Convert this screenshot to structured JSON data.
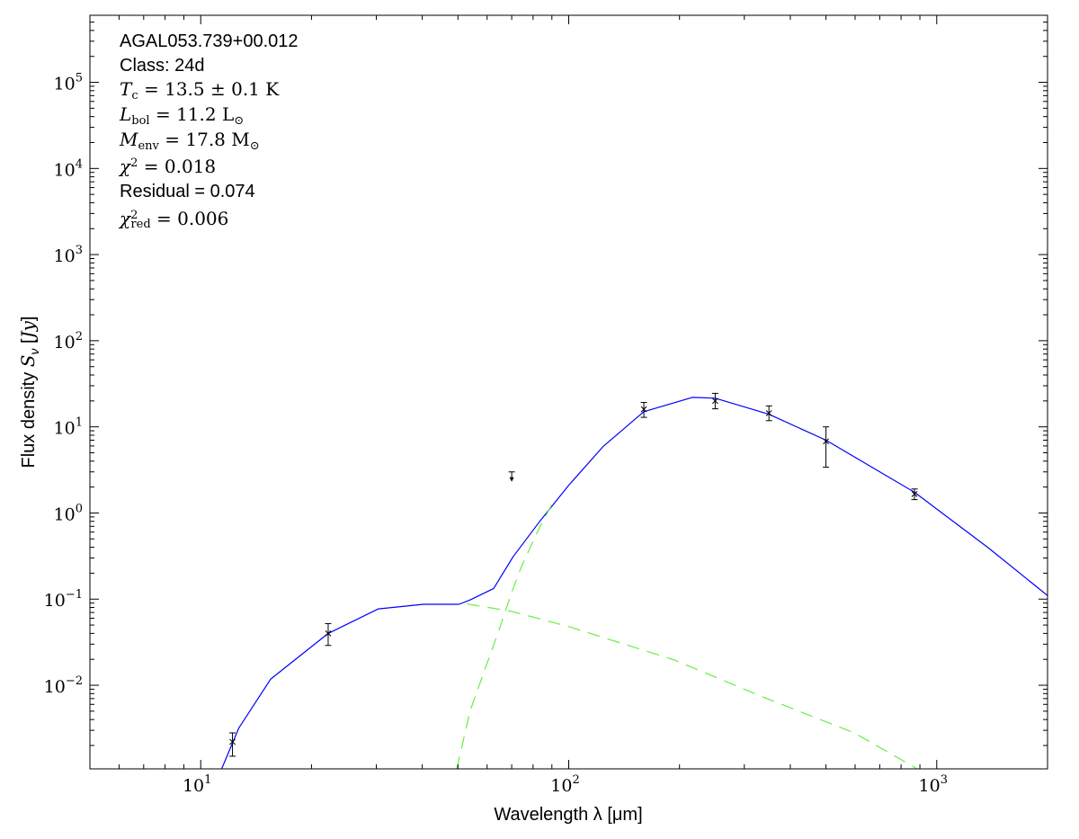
{
  "chart_data": {
    "type": "scatter",
    "title": "",
    "xlabel": "Wavelength λ [μm]",
    "ylabel": "Flux density S_ν [Jy]",
    "xscale": "log",
    "yscale": "log",
    "xlim": [
      5,
      2000
    ],
    "ylim": [
      0.00107,
      600000
    ],
    "grid": false,
    "x_ticks": [
      {
        "value": 10,
        "base": "10",
        "exp": "1"
      },
      {
        "value": 100,
        "base": "10",
        "exp": "2"
      },
      {
        "value": 1000,
        "base": "10",
        "exp": "3"
      }
    ],
    "y_ticks": [
      {
        "value": 0.01,
        "base": "10",
        "exp": "−2"
      },
      {
        "value": 0.1,
        "base": "10",
        "exp": "−1"
      },
      {
        "value": 1,
        "base": "10",
        "exp": "0"
      },
      {
        "value": 10,
        "base": "10",
        "exp": "1"
      },
      {
        "value": 100,
        "base": "10",
        "exp": "2"
      },
      {
        "value": 1000,
        "base": "10",
        "exp": "3"
      },
      {
        "value": 10000,
        "base": "10",
        "exp": "4"
      },
      {
        "value": 100000,
        "base": "10",
        "exp": "5"
      }
    ],
    "annotations": {
      "source": "AGAL053.739+00.012",
      "class": "Class: 24d",
      "tc": {
        "sym": "T",
        "sub": "c",
        "rest": " = 13.5 ± 0.1 K"
      },
      "lbol": {
        "sym": "L",
        "sub": "bol",
        "rest": " = 11.2 L",
        "unit_sub": "⊙"
      },
      "menv": {
        "sym": "M",
        "sub": "env",
        "rest": " = 17.8 M",
        "unit_sub": "⊙"
      },
      "chi2": {
        "sym": "χ",
        "sup": "2",
        "rest": " = 0.018"
      },
      "residual": "Residual = 0.074",
      "chi2red": {
        "sym": "χ",
        "sup": "2",
        "sub": "red",
        "rest": " = 0.006"
      }
    },
    "points": [
      {
        "x": 12.2,
        "y": 0.0022,
        "err_low": 0.0015,
        "err_high": 0.0028
      },
      {
        "x": 22.2,
        "y": 0.04,
        "err_low": 0.029,
        "err_high": 0.052
      },
      {
        "x": 160,
        "y": 16,
        "err_low": 12.9,
        "err_high": 19.2
      },
      {
        "x": 250,
        "y": 20,
        "err_low": 16.2,
        "err_high": 24.5
      },
      {
        "x": 350,
        "y": 14.4,
        "err_low": 11.8,
        "err_high": 17.5
      },
      {
        "x": 500,
        "y": 6.8,
        "err_low": 3.4,
        "err_high": 10
      },
      {
        "x": 870,
        "y": 1.66,
        "err_low": 1.43,
        "err_high": 1.9
      }
    ],
    "upper_limits": [
      {
        "x": 70,
        "y": 3.0
      }
    ],
    "series": [
      {
        "style": "solid",
        "color": "#0000ff",
        "x": [
          11.4,
          12.7,
          15.5,
          22.2,
          30.4,
          40.3,
          50.3,
          54,
          62.5,
          70.6,
          83.6,
          100,
          124,
          160,
          217,
          250,
          350,
          500,
          870,
          1385,
          2000
        ],
        "y": [
          0.00107,
          0.0032,
          0.0118,
          0.04,
          0.077,
          0.087,
          0.087,
          0.098,
          0.133,
          0.31,
          0.81,
          2.1,
          5.9,
          15,
          22,
          21.5,
          14,
          7,
          1.74,
          0.39,
          0.11
        ]
      },
      {
        "style": "dashed",
        "color": "#66ee44",
        "x": [
          53,
          70,
          100,
          194,
          340,
          597,
          885
        ],
        "y": [
          0.088,
          0.072,
          0.048,
          0.0196,
          0.0072,
          0.0028,
          0.00107
        ]
      },
      {
        "style": "dashed",
        "color": "#66ee44",
        "x": [
          49.6,
          54,
          60,
          64.7,
          70,
          74.7,
          83.6,
          92
        ],
        "y": [
          0.00107,
          0.0051,
          0.018,
          0.044,
          0.12,
          0.25,
          0.7,
          1.5
        ]
      }
    ]
  }
}
